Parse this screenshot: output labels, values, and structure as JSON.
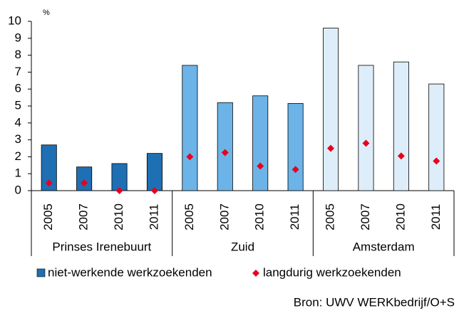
{
  "chart_data": {
    "type": "bar",
    "unit_label": "%",
    "groups": [
      {
        "name": "Prinses Irenebuurt",
        "color": "#1f6fb4",
        "categories": [
          "2005",
          "2007",
          "2010",
          "2011"
        ]
      },
      {
        "name": "Zuid",
        "color": "#6cb4e8",
        "categories": [
          "2005",
          "2007",
          "2010",
          "2011"
        ]
      },
      {
        "name": "Amsterdam",
        "color": "#ddeefa",
        "categories": [
          "2005",
          "2007",
          "2010",
          "2011"
        ]
      }
    ],
    "series": [
      {
        "name": "niet-werkende werkzoekenden",
        "color": "#1f6fb4",
        "mark": "bar",
        "values": [
          2.7,
          1.4,
          1.6,
          2.2,
          7.4,
          5.2,
          5.6,
          5.15,
          9.6,
          7.4,
          7.6,
          6.3
        ]
      },
      {
        "name": "langdurig werkzoekenden",
        "color": "#e8001c",
        "mark": "diamond",
        "values": [
          0.45,
          0.45,
          0.0,
          0.0,
          2.0,
          2.25,
          1.45,
          1.25,
          2.5,
          2.8,
          2.05,
          1.75
        ]
      }
    ],
    "ylim": [
      0,
      10
    ],
    "yticks": [
      0,
      1,
      2,
      3,
      4,
      5,
      6,
      7,
      8,
      9,
      10
    ],
    "source": "Bron: UWV WERKbedrijf/O+S"
  }
}
